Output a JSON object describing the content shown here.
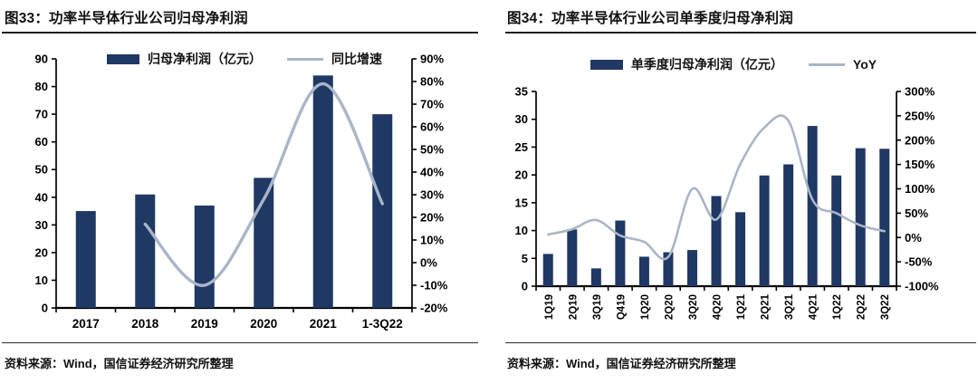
{
  "colors": {
    "bar": "#1f3864",
    "line": "#a9b5c8",
    "axis": "#000000",
    "rule": "#1f1f1f",
    "background": "#ffffff"
  },
  "chart_data": [
    {
      "type": "bar+line",
      "title": "图33：功率半导体行业公司归母净利润",
      "source": "资料来源：Wind，国信证券经济研究所整理",
      "categories": [
        "2017",
        "2018",
        "2019",
        "2020",
        "2021",
        "1-3Q22"
      ],
      "series": [
        {
          "name": "归母净利润（亿元）",
          "type": "bar",
          "axis": "left",
          "values": [
            35,
            41,
            37,
            47,
            84,
            70
          ]
        },
        {
          "name": "同比增速",
          "type": "line",
          "axis": "right",
          "values": [
            null,
            17,
            -10,
            28,
            79,
            26
          ]
        }
      ],
      "left_axis": {
        "min": 0,
        "max": 90,
        "step": 10,
        "tick_labels": [
          "0",
          "10",
          "20",
          "30",
          "40",
          "50",
          "60",
          "70",
          "80",
          "90"
        ]
      },
      "right_axis": {
        "min": -20,
        "max": 90,
        "step": 10,
        "tick_labels": [
          "-20%",
          "-10%",
          "0%",
          "10%",
          "20%",
          "30%",
          "40%",
          "50%",
          "60%",
          "70%",
          "80%",
          "90%"
        ]
      },
      "legend_position": "top",
      "grid": false
    },
    {
      "type": "bar+line",
      "title": "图34：功率半导体行业公司单季度归母净利润",
      "source": "资料来源：Wind，国信证券经济研究所整理",
      "categories": [
        "1Q19",
        "2Q19",
        "3Q19",
        "Q419",
        "1Q20",
        "2Q20",
        "3Q20",
        "4Q20",
        "1Q21",
        "2Q21",
        "3Q21",
        "4Q21",
        "1Q22",
        "2Q22",
        "3Q22"
      ],
      "series": [
        {
          "name": "单季度归母净利润（亿元）",
          "type": "bar",
          "axis": "left",
          "values": [
            5.8,
            10.2,
            3.2,
            11.8,
            5.3,
            6.1,
            6.5,
            16.2,
            13.3,
            19.9,
            21.9,
            28.8,
            19.9,
            24.8,
            24.7
          ]
        },
        {
          "name": "YoY",
          "type": "line",
          "axis": "right",
          "values": [
            6,
            17,
            36,
            4,
            -9,
            -40,
            100,
            37,
            151,
            226,
            240,
            78,
            50,
            25,
            13
          ]
        }
      ],
      "left_axis": {
        "min": 0,
        "max": 35,
        "step": 5,
        "tick_labels": [
          "0",
          "5",
          "10",
          "15",
          "20",
          "25",
          "30",
          "35"
        ]
      },
      "right_axis": {
        "min": -100,
        "max": 300,
        "step": 50,
        "tick_labels": [
          "-100%",
          "-50%",
          "0%",
          "50%",
          "100%",
          "150%",
          "200%",
          "250%",
          "300%"
        ]
      },
      "legend_position": "top",
      "grid": false
    }
  ]
}
